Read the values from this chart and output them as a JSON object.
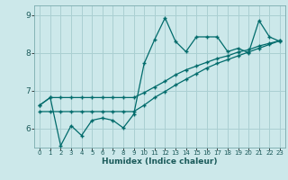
{
  "xlabel": "Humidex (Indice chaleur)",
  "bg_color": "#cce8ea",
  "grid_color": "#aacfd2",
  "line_color": "#006b6b",
  "xlim": [
    -0.5,
    23.5
  ],
  "ylim": [
    5.5,
    9.25
  ],
  "yticks": [
    6,
    7,
    8,
    9
  ],
  "xticks": [
    0,
    1,
    2,
    3,
    4,
    5,
    6,
    7,
    8,
    9,
    10,
    11,
    12,
    13,
    14,
    15,
    16,
    17,
    18,
    19,
    20,
    21,
    22,
    23
  ],
  "series1_x": [
    0,
    1,
    2,
    3,
    4,
    5,
    6,
    7,
    8,
    9,
    10,
    11,
    12,
    13,
    14,
    15,
    16,
    17,
    18,
    19,
    20,
    21,
    22,
    23
  ],
  "series1_y": [
    6.62,
    6.82,
    5.55,
    6.08,
    5.82,
    6.22,
    6.28,
    6.22,
    6.02,
    6.38,
    7.72,
    8.35,
    8.92,
    8.3,
    8.03,
    8.42,
    8.42,
    8.42,
    8.03,
    8.12,
    8.0,
    8.85,
    8.42,
    8.3
  ],
  "series2_x": [
    0,
    1,
    2,
    3,
    4,
    5,
    6,
    7,
    8,
    9,
    10,
    11,
    12,
    13,
    14,
    15,
    16,
    17,
    18,
    19,
    20,
    21,
    22,
    23
  ],
  "series2_y": [
    6.62,
    6.82,
    6.82,
    6.82,
    6.82,
    6.82,
    6.82,
    6.82,
    6.82,
    6.82,
    6.95,
    7.1,
    7.25,
    7.42,
    7.55,
    7.65,
    7.75,
    7.85,
    7.92,
    8.02,
    8.08,
    8.18,
    8.25,
    8.32
  ],
  "series3_x": [
    0,
    1,
    2,
    3,
    4,
    5,
    6,
    7,
    8,
    9,
    10,
    11,
    12,
    13,
    14,
    15,
    16,
    17,
    18,
    19,
    20,
    21,
    22,
    23
  ],
  "series3_y": [
    6.45,
    6.45,
    6.45,
    6.45,
    6.45,
    6.45,
    6.45,
    6.45,
    6.45,
    6.45,
    6.62,
    6.82,
    6.98,
    7.15,
    7.3,
    7.45,
    7.6,
    7.72,
    7.82,
    7.92,
    8.02,
    8.12,
    8.22,
    8.32
  ]
}
